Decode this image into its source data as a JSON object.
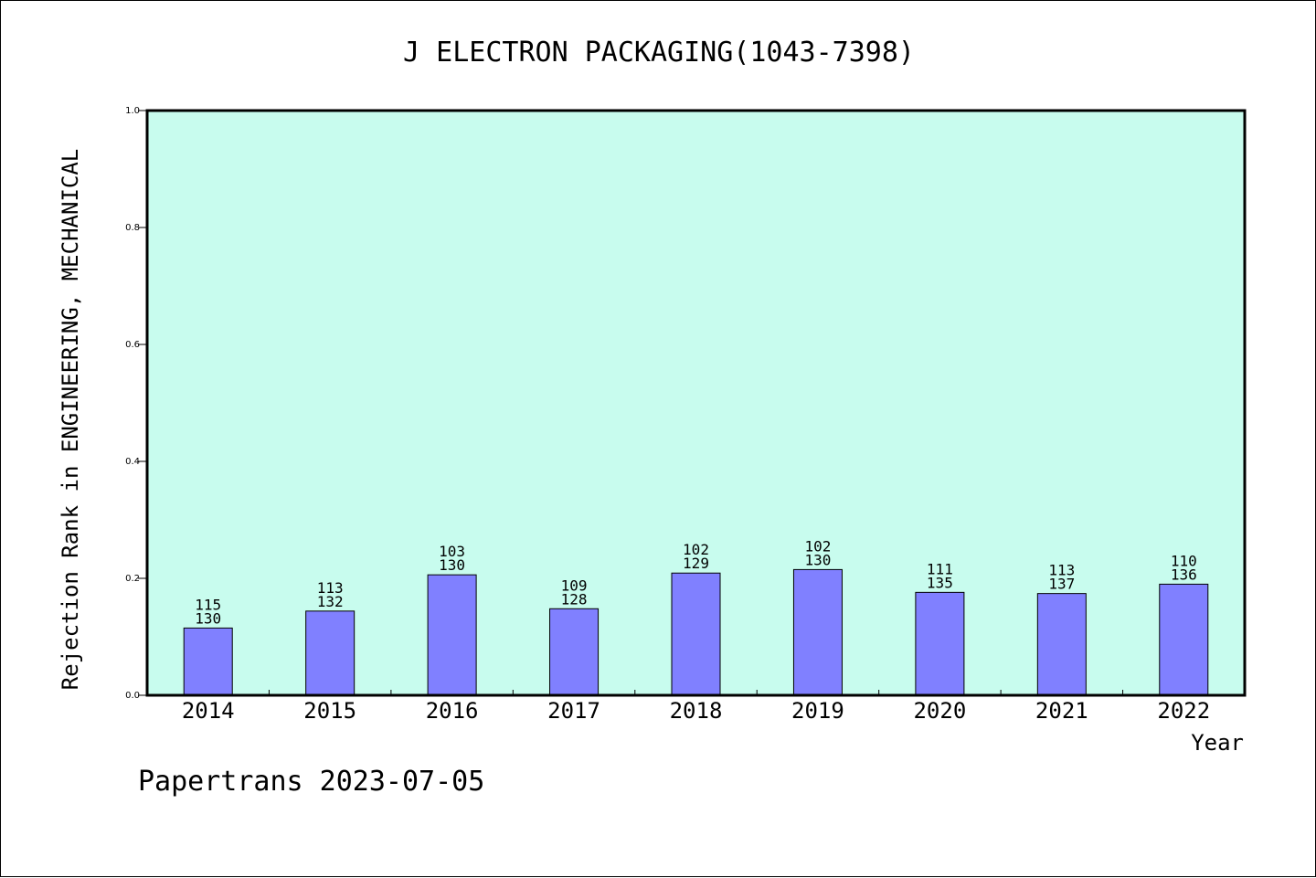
{
  "chart_data": {
    "type": "bar",
    "title": "J ELECTRON PACKAGING(1043-7398)",
    "xlabel": "Year",
    "ylabel": "Rejection Rank in ENGINEERING, MECHANICAL",
    "ylim": [
      0,
      1.0
    ],
    "yticks": [
      "0.0",
      "0.2",
      "0.4",
      "0.6",
      "0.8",
      "1.0"
    ],
    "categories": [
      "2014",
      "2015",
      "2016",
      "2017",
      "2018",
      "2019",
      "2020",
      "2021",
      "2022"
    ],
    "values": [
      0.115,
      0.144,
      0.206,
      0.148,
      0.209,
      0.215,
      0.176,
      0.174,
      0.19
    ],
    "labels_top": [
      "115",
      "113",
      "103",
      "109",
      "102",
      "102",
      "111",
      "113",
      "110"
    ],
    "labels_bottom": [
      "130",
      "132",
      "130",
      "128",
      "129",
      "130",
      "135",
      "137",
      "136"
    ],
    "plot_background": "#c8fcee",
    "bar_color": "#8080ff",
    "grid": false
  },
  "footer": "Papertrans 2023-07-05"
}
